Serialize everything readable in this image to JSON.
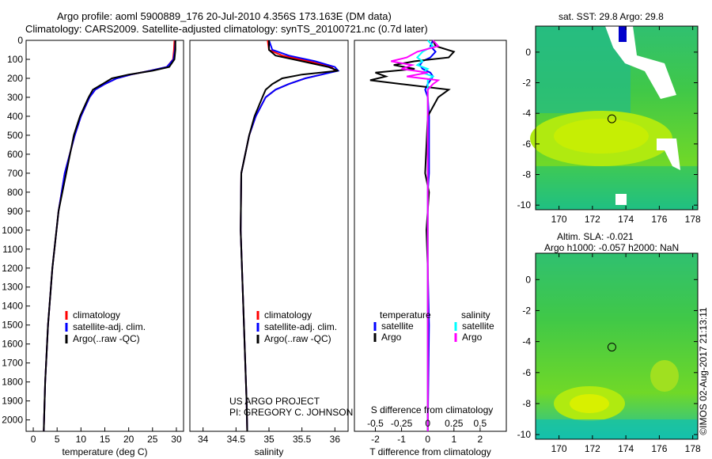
{
  "title_line1": "Argo profile: aoml 5900889_176 20-Jul-2010 4.356S 173.163E (DM data)",
  "title_line2": "Climatology: CARS2009. Satellite-adjusted climatology: synTS_20100721.nc (0.7d later)",
  "credit": "US ARGO PROJECT",
  "pi": "PI: GREGORY C. JOHNSON",
  "stamp": "©IMOS 02-Aug-2017 21:13:11",
  "map1_title": "sat. SST: 29.8  Argo: 29.8",
  "map2_title1": "Altim. SLA: -0.021",
  "map2_title2": "Argo h1000: -0.057 h2000: NaN",
  "chart_data": [
    {
      "type": "line",
      "id": "temp",
      "xlabel": "temperature (deg C)",
      "ylabel": "",
      "xlim": [
        -1.5,
        31.5
      ],
      "ylim": [
        2060,
        0
      ],
      "xticks": [
        0,
        5,
        10,
        15,
        20,
        25,
        30
      ],
      "yticks": [
        0,
        100,
        200,
        300,
        400,
        500,
        600,
        700,
        800,
        900,
        1000,
        1100,
        1200,
        1300,
        1400,
        1500,
        1600,
        1700,
        1800,
        1900,
        2000
      ],
      "legend": [
        "climatology",
        "satellite-adj. clim.",
        "Argo(..raw -QC)"
      ],
      "depth": [
        0,
        50,
        100,
        140,
        160,
        180,
        200,
        230,
        260,
        300,
        400,
        500,
        700,
        900,
        1200,
        1500,
        1800,
        2060
      ],
      "series": [
        {
          "name": "climatology",
          "color": "#ff0000",
          "values": [
            29.6,
            29.5,
            29.3,
            28.0,
            24.5,
            20.5,
            17.5,
            15.0,
            13.0,
            11.8,
            10.0,
            8.7,
            6.6,
            5.3,
            4.0,
            3.1,
            2.5,
            2.2
          ]
        },
        {
          "name": "satellite-adj. clim.",
          "color": "#0000ff",
          "values": [
            29.8,
            29.7,
            29.4,
            28.0,
            24.5,
            20.5,
            17.5,
            15.0,
            13.0,
            11.8,
            10.0,
            8.7,
            6.6,
            5.3,
            4.0,
            3.1,
            2.5,
            2.2
          ]
        },
        {
          "name": "Argo(..raw -QC)",
          "color": "#000000",
          "values": [
            29.8,
            29.8,
            29.6,
            28.5,
            25.0,
            20.0,
            16.5,
            14.5,
            12.5,
            11.6,
            9.8,
            8.5,
            6.9,
            5.3,
            4.0,
            3.1,
            2.5,
            2.2
          ]
        }
      ]
    },
    {
      "type": "line",
      "id": "sal",
      "xlabel": "salinity",
      "xlim": [
        33.8,
        36.2
      ],
      "ylim": [
        2060,
        0
      ],
      "xticks": [
        34,
        34.5,
        35,
        35.5,
        36
      ],
      "legend": [
        "climatology",
        "satellite-adj. clim.",
        "Argo(..raw -QC)"
      ],
      "depth": [
        0,
        50,
        80,
        110,
        140,
        160,
        180,
        200,
        230,
        260,
        300,
        400,
        500,
        700,
        1000,
        1300,
        1600,
        1900,
        2060
      ],
      "series": [
        {
          "name": "climatology",
          "color": "#ff0000",
          "values": [
            34.98,
            35.0,
            35.2,
            35.6,
            35.95,
            36.0,
            35.8,
            35.55,
            35.3,
            35.1,
            34.95,
            34.8,
            34.7,
            34.58,
            34.57,
            34.6,
            34.63,
            34.66,
            34.67
          ]
        },
        {
          "name": "satellite-adj. clim.",
          "color": "#0000ff",
          "values": [
            35.0,
            35.05,
            35.3,
            35.7,
            36.0,
            36.05,
            35.8,
            35.55,
            35.3,
            35.1,
            34.95,
            34.8,
            34.7,
            34.58,
            34.57,
            34.6,
            34.63,
            34.66,
            34.67
          ]
        },
        {
          "name": "Argo(..raw -QC)",
          "color": "#000000",
          "values": [
            35.0,
            35.0,
            35.1,
            35.5,
            35.9,
            36.05,
            35.5,
            35.2,
            35.05,
            34.95,
            34.9,
            34.78,
            34.7,
            34.58,
            34.57,
            34.6,
            34.63,
            34.66,
            34.67
          ]
        }
      ]
    },
    {
      "type": "line",
      "id": "diff",
      "xlabel": "T difference from climatology",
      "x2label": "S difference from climatology",
      "xlim": [
        -2.8,
        3.0
      ],
      "x2lim": [
        -0.7,
        0.75
      ],
      "ylim": [
        2060,
        0
      ],
      "xticks": [
        -2,
        -1,
        0,
        1,
        2
      ],
      "x2ticks": [
        "-0.5",
        "-0.25",
        "0",
        "0.25",
        "0.5"
      ],
      "legend_headers": [
        "temperature",
        "salinity"
      ],
      "legend": [
        "satellite",
        "Argo",
        "satellite",
        "Argo"
      ],
      "depth": [
        0,
        30,
        60,
        90,
        110,
        130,
        150,
        170,
        190,
        210,
        230,
        260,
        300,
        400,
        700,
        800,
        1000,
        1200,
        1500,
        2060
      ],
      "series": [
        {
          "name": "T satellite",
          "color": "#0000ff",
          "axis": "T",
          "values": [
            0.2,
            0.1,
            0.3,
            0.1,
            -0.2,
            -0.3,
            -0.2,
            0.1,
            0.2,
            0.1,
            0.0,
            -0.1,
            0.0,
            0.05,
            0.05,
            0.0,
            0.0,
            0.0,
            0.05,
            0.0
          ]
        },
        {
          "name": "T Argo",
          "color": "#000000",
          "axis": "T",
          "values": [
            0.2,
            0.3,
            1.0,
            0.8,
            -0.5,
            -1.3,
            -0.5,
            -2.0,
            -1.6,
            -2.2,
            -1.0,
            0.8,
            0.4,
            0.0,
            -0.1,
            0.05,
            -0.05,
            0.0,
            0.0,
            0.0
          ]
        },
        {
          "name": "S satellite",
          "color": "#00ffff",
          "axis": "S",
          "values": [
            0.0,
            0.05,
            -0.05,
            -0.1,
            -0.05,
            -0.1,
            0.0,
            -0.05,
            0.05,
            0.0,
            0.0,
            0.0,
            0.0,
            0.0,
            0.0,
            0.0,
            0.0,
            0.0,
            0.0,
            0.0
          ]
        },
        {
          "name": "S Argo",
          "color": "#ff00ff",
          "axis": "S",
          "values": [
            0.05,
            0.1,
            -0.1,
            -0.2,
            -0.35,
            -0.15,
            -0.25,
            0.0,
            -0.2,
            0.1,
            0.05,
            0.0,
            0.0,
            0.0,
            0.0,
            0.0,
            0.0,
            0.0,
            0.0,
            0.0
          ]
        }
      ]
    },
    {
      "type": "heatmap",
      "id": "map1",
      "xlim": [
        168.6,
        178.3
      ],
      "ylim": [
        -10.3,
        1.7
      ],
      "xticks": [
        170,
        172,
        174,
        176,
        178
      ],
      "yticks": [
        0,
        -2,
        -4,
        -6,
        -8,
        -10
      ],
      "marker": [
        173.163,
        -4.356
      ]
    },
    {
      "type": "heatmap",
      "id": "map2",
      "xlim": [
        168.6,
        178.3
      ],
      "ylim": [
        -10.3,
        1.7
      ],
      "xticks": [
        170,
        172,
        174,
        176,
        178
      ],
      "yticks": [
        0,
        -2,
        -4,
        -6,
        -8,
        -10
      ],
      "marker": [
        173.163,
        -4.356
      ]
    }
  ]
}
